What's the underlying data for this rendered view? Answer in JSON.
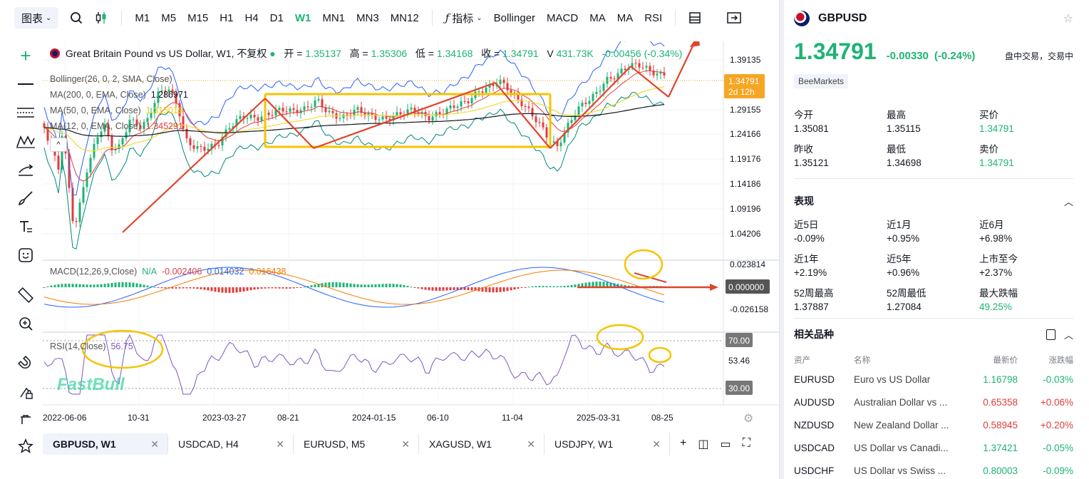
{
  "toolbar": {
    "chart_type": "图表",
    "timeframes": [
      {
        "label": "M1",
        "active": false
      },
      {
        "label": "M5",
        "active": false
      },
      {
        "label": "M15",
        "active": false
      },
      {
        "label": "H1",
        "active": false
      },
      {
        "label": "H4",
        "active": false
      },
      {
        "label": "D1",
        "active": false
      },
      {
        "label": "W1",
        "active": true
      },
      {
        "label": "MN1",
        "active": false
      },
      {
        "label": "MN3",
        "active": false
      },
      {
        "label": "MN12",
        "active": false
      }
    ],
    "indicators_label": "指标",
    "indicators": [
      "Bollinger",
      "MACD",
      "MA",
      "MA",
      "RSI"
    ]
  },
  "legend": {
    "title": "Great Britain Pound vs US Dollar, W1, 不复权",
    "open_label": "开",
    "open": "1.35137",
    "high_label": "高",
    "high": "1.35306",
    "low_label": "低",
    "low": "1.34168",
    "close_label": "收",
    "close": "1.34791",
    "volume_label": "V",
    "volume": "431.73K",
    "change": "-0.00456 (-0.34%)",
    "bollinger": "Bollinger(26, 0, 2, SMA, Close)",
    "ma200": "MA(200, 0, EMA, Close)",
    "ma200_value": "1.286971",
    "ma50": "MA(50, 0, EMA, Close)",
    "ma50_value": "1.315019",
    "ma12": "MA(12, 0, EMA, Close)",
    "ma12_value": "1.345291",
    "macd": "MACD(12,26,9,Close)",
    "macd_na": "N/A",
    "macd_v1": "-0.002406",
    "macd_v2": "0.014032",
    "macd_v3": "0.016438",
    "rsi": "RSI(14,Close)",
    "rsi_value": "56.75"
  },
  "price_axis": {
    "main_ticks": [
      "1.39135",
      "1.34791",
      "1.29155",
      "1.24166",
      "1.19176",
      "1.14186",
      "1.09196",
      "1.04206"
    ],
    "current_price": "1.34791",
    "countdown": "2d 12h",
    "macd_ticks": [
      "0.023814",
      "0.000000",
      "-0.026158"
    ],
    "rsi_ticks": [
      "70.00",
      "53.46",
      "30.00"
    ]
  },
  "time_axis": [
    "2022-06-06",
    "10-31",
    "2023-03-27",
    "08-21",
    "2024-01-15",
    "06-10",
    "11-04",
    "2025-03-31",
    "08-25"
  ],
  "logo_text": "FastBull",
  "bottom_tabs": [
    {
      "label": "GBPUSD, W1",
      "active": true
    },
    {
      "label": "USDCAD, H4",
      "active": false
    },
    {
      "label": "EURUSD, M5",
      "active": false
    },
    {
      "label": "XAGUSD, W1",
      "active": false
    },
    {
      "label": "USDJPY, W1",
      "active": false
    }
  ],
  "symbol": {
    "name": "GBPUSD",
    "price": "1.34791",
    "change": "-0.00330",
    "change_pct": "(-0.24%)",
    "status": "盘中交易，交易中",
    "broker": "BeeMarkets"
  },
  "quote": [
    {
      "label": "今开",
      "value": "1.35081",
      "color": "normal"
    },
    {
      "label": "最高",
      "value": "1.35115",
      "color": "normal"
    },
    {
      "label": "买价",
      "value": "1.34791",
      "color": "green"
    },
    {
      "label": "昨收",
      "value": "1.35121",
      "color": "normal"
    },
    {
      "label": "最低",
      "value": "1.34698",
      "color": "normal"
    },
    {
      "label": "卖价",
      "value": "1.34791",
      "color": "green"
    }
  ],
  "performance_title": "表现",
  "performance": [
    {
      "label": "近5日",
      "value": "-0.09%",
      "color": "normal"
    },
    {
      "label": "近1月",
      "value": "+0.95%",
      "color": "normal"
    },
    {
      "label": "近6月",
      "value": "+6.98%",
      "color": "normal"
    },
    {
      "label": "近1年",
      "value": "+2.19%",
      "color": "normal"
    },
    {
      "label": "近5年",
      "value": "+0.96%",
      "color": "normal"
    },
    {
      "label": "上市至今",
      "value": "+2.37%",
      "color": "normal"
    },
    {
      "label": "52周最高",
      "value": "1.37887",
      "color": "normal"
    },
    {
      "label": "52周最低",
      "value": "1.27084",
      "color": "normal"
    },
    {
      "label": "最大跌幅",
      "value": "49.25%",
      "color": "green"
    }
  ],
  "related_title": "相关品种",
  "related_headers": {
    "code": "资产",
    "name": "名称",
    "price": "最新价",
    "change": "涨跌幅"
  },
  "related": [
    {
      "code": "EURUSD",
      "name": "Euro vs US Dollar",
      "price": "1.16798",
      "change": "-0.03%",
      "price_color": "green",
      "change_color": "green"
    },
    {
      "code": "AUDUSD",
      "name": "Australian Dollar vs ...",
      "price": "0.65358",
      "change": "+0.06%",
      "price_color": "red",
      "change_color": "red"
    },
    {
      "code": "NZDUSD",
      "name": "New Zealand Dollar ...",
      "price": "0.58945",
      "change": "+0.20%",
      "price_color": "red",
      "change_color": "red"
    },
    {
      "code": "USDCAD",
      "name": "US Dollar vs Canadi...",
      "price": "1.37421",
      "change": "-0.05%",
      "price_color": "green",
      "change_color": "green"
    },
    {
      "code": "USDCHF",
      "name": "US Dollar vs Swiss ...",
      "price": "0.80003",
      "change": "-0.09%",
      "price_color": "green",
      "change_color": "green"
    }
  ],
  "colors": {
    "up": "#1eb374",
    "down": "#e03c3c",
    "accent": "#f5a623",
    "annotation": "#f5c400",
    "arrow": "#e0442b"
  }
}
